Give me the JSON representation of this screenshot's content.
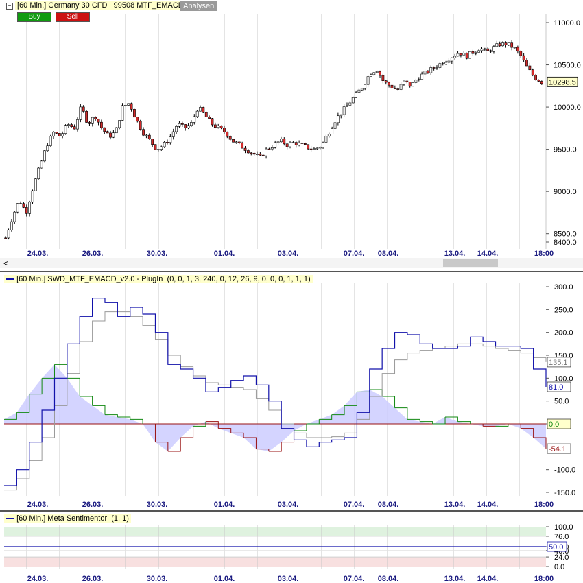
{
  "price_panel": {
    "title_interval": "[60 Min.]",
    "title_instrument": "Germany 30 CFD",
    "title_indicator": "99508 MTF_EMACD",
    "analysen_label": "Analysen",
    "buy_label": "Buy",
    "sell_label": "Sell",
    "collapse_glyph": "−",
    "scroll_left_glyph": "<",
    "last_price": "10298.5",
    "y_ticks": [
      "11000.0",
      "10500.0",
      "10000.0",
      "9500.0",
      "9000.0",
      "8500.0",
      "8400.0"
    ]
  },
  "emacd_panel": {
    "title": "[60 Min.] SWD_MTF_EMACD_v2.0 - PlugIn",
    "params": "(0, 0, 1, 3, 240, 0, 12, 26, 9, 0, 0, 0, 1, 1, 1)",
    "y_ticks": [
      "300.0",
      "250.0",
      "200.0",
      "150.0",
      "100.0",
      "50.0",
      "0.0",
      "-100.0",
      "-150.0"
    ],
    "badge_grey": "135.1",
    "badge_blue": "81.0",
    "badge_green": "0.0",
    "badge_red": "-54.1"
  },
  "sentiment_panel": {
    "title": "[60 Min.] Meta Sentimentor",
    "params": "(1, 1)",
    "y_ticks": [
      "100.0",
      "76.0",
      "50.0",
      "40.0",
      "24.0",
      "0.0"
    ],
    "badge": "50.0"
  },
  "x_labels": [
    "24.03.",
    "26.03.",
    "30.03.",
    "01.04.",
    "03.04.",
    "07.04.",
    "08.04.",
    "13.04.",
    "14.04.",
    "18:00"
  ],
  "colors": {
    "up_candle": "#ffffff",
    "down_candle": "#d42b2b",
    "buy": "#119b11",
    "sell": "#cc1111",
    "macd_line": "#1111aa",
    "signal_line": "#999999",
    "hist_pos_line": "#118811",
    "hist_neg_line": "#991111",
    "hist_fill": "#ccccff",
    "date_label": "#1a1a80"
  },
  "chart_data": [
    {
      "type": "candlestick",
      "title": "Germany 30 CFD",
      "ylim": [
        8400,
        11000
      ],
      "x": [
        "24.03.",
        "26.03.",
        "30.03.",
        "01.04.",
        "03.04.",
        "07.04.",
        "08.04.",
        "13.04.",
        "14.04.",
        "18:00"
      ],
      "close_path": [
        8450,
        8700,
        8900,
        8750,
        9050,
        9300,
        9550,
        9700,
        9650,
        9800,
        9750,
        10000,
        9800,
        9900,
        9750,
        9650,
        9700,
        10000,
        10050,
        9850,
        9700,
        9600,
        9500,
        9550,
        9650,
        9800,
        9750,
        9800,
        10000,
        9900,
        9800,
        9750,
        9700,
        9600,
        9550,
        9500,
        9450,
        9400,
        9500,
        9550,
        9600,
        9550,
        9580,
        9550,
        9520,
        9500,
        9550,
        9700,
        9850,
        9950,
        10050,
        10150,
        10250,
        10400,
        10450,
        10300,
        10250,
        10200,
        10300,
        10250,
        10350,
        10400,
        10450,
        10500,
        10550,
        10600,
        10650,
        10600,
        10650,
        10700,
        10650,
        10700,
        10750,
        10750,
        10700,
        10600,
        10450,
        10350,
        10298.5
      ],
      "last": 10298.5
    },
    {
      "type": "line",
      "title": "SWD_MTF_EMACD_v2.0",
      "ylim": [
        -150,
        300
      ],
      "series": [
        {
          "values": [
            -135,
            -100,
            -40,
            30,
            100,
            175,
            235,
            275,
            265,
            235,
            255,
            240,
            200,
            130,
            120,
            100,
            70,
            80,
            95,
            105,
            85,
            50,
            -10,
            -35,
            -50,
            -40,
            -35,
            -30,
            25,
            120,
            165,
            200,
            195,
            175,
            165,
            165,
            170,
            190,
            180,
            170,
            170,
            165,
            120,
            81
          ]
        },
        {
          "values": [
            -145,
            -120,
            -80,
            -30,
            40,
            110,
            180,
            225,
            245,
            245,
            235,
            215,
            185,
            150,
            125,
            105,
            90,
            85,
            80,
            75,
            55,
            30,
            0,
            -20,
            -30,
            -30,
            -28,
            -20,
            10,
            60,
            110,
            140,
            155,
            160,
            165,
            170,
            175,
            175,
            170,
            165,
            160,
            155,
            145,
            135.1
          ]
        },
        {
          "values": [
            10,
            25,
            65,
            100,
            130,
            100,
            60,
            40,
            20,
            15,
            10,
            0,
            -40,
            -60,
            -30,
            -5,
            5,
            -10,
            -20,
            -30,
            -55,
            -60,
            -40,
            -15,
            0,
            10,
            20,
            40,
            70,
            75,
            60,
            35,
            10,
            5,
            0,
            15,
            5,
            0,
            -5,
            -5,
            0,
            -10,
            -30,
            -54.1
          ]
        }
      ]
    },
    {
      "type": "line",
      "title": "Meta Sentimentor",
      "ylim": [
        0,
        100
      ],
      "series": [
        {
          "values": [
            50,
            50,
            50,
            50,
            50,
            50,
            50,
            50,
            50,
            50
          ]
        }
      ]
    }
  ]
}
